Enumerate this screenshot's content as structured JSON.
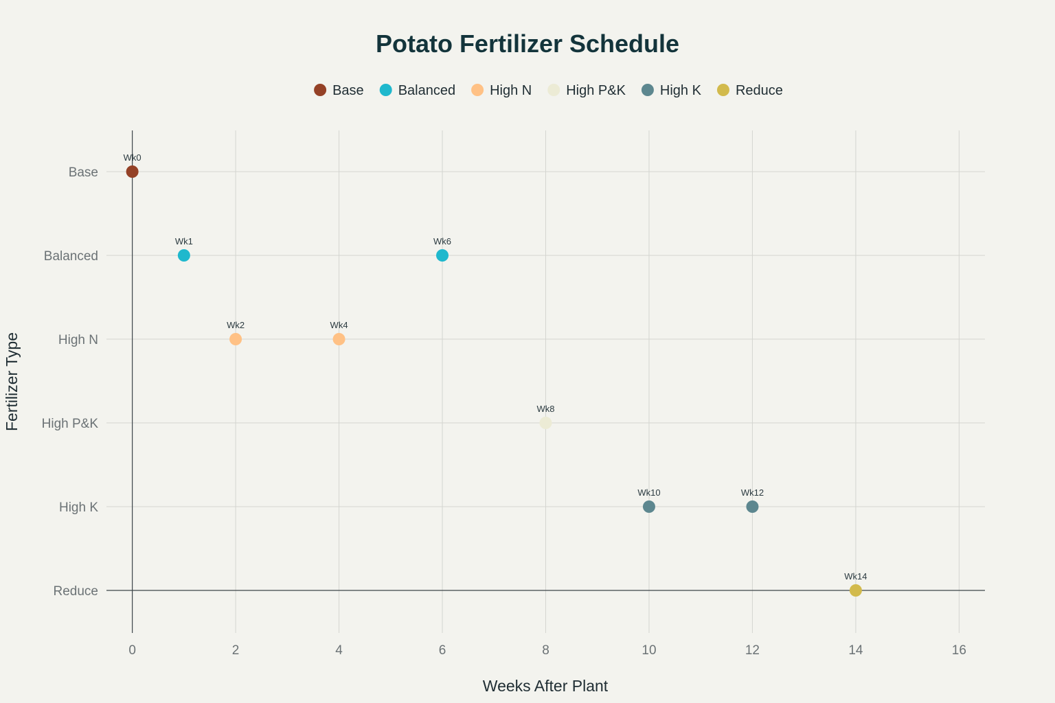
{
  "chart_data": {
    "type": "scatter",
    "title": "Potato Fertilizer Schedule",
    "xlabel": "Weeks After Plant",
    "ylabel": "Fertilizer Type",
    "xlim": [
      -0.5,
      16.5
    ],
    "x_ticks": [
      0,
      2,
      4,
      6,
      8,
      10,
      12,
      14,
      16
    ],
    "y_categories": [
      "Base",
      "Balanced",
      "High N",
      "High P&K",
      "High K",
      "Reduce"
    ],
    "grid": true,
    "legend_position": "top",
    "series": [
      {
        "name": "Base",
        "color": "#944126",
        "points": [
          {
            "x": 0,
            "y": "Base",
            "label": "Wk0"
          }
        ]
      },
      {
        "name": "Balanced",
        "color": "#1fb8cd",
        "points": [
          {
            "x": 1,
            "y": "Balanced",
            "label": "Wk1"
          },
          {
            "x": 6,
            "y": "Balanced",
            "label": "Wk6"
          }
        ]
      },
      {
        "name": "High N",
        "color": "#ffc185",
        "points": [
          {
            "x": 2,
            "y": "High N",
            "label": "Wk2"
          },
          {
            "x": 4,
            "y": "High N",
            "label": "Wk4"
          }
        ]
      },
      {
        "name": "High P&K",
        "color": "#ecebd5",
        "points": [
          {
            "x": 8,
            "y": "High P&K",
            "label": "Wk8"
          }
        ]
      },
      {
        "name": "High K",
        "color": "#5d878f",
        "points": [
          {
            "x": 10,
            "y": "High K",
            "label": "Wk10"
          },
          {
            "x": 12,
            "y": "High K",
            "label": "Wk12"
          }
        ]
      },
      {
        "name": "Reduce",
        "color": "#d2ba4c",
        "points": [
          {
            "x": 14,
            "y": "Reduce",
            "label": "Wk14"
          }
        ]
      }
    ]
  }
}
